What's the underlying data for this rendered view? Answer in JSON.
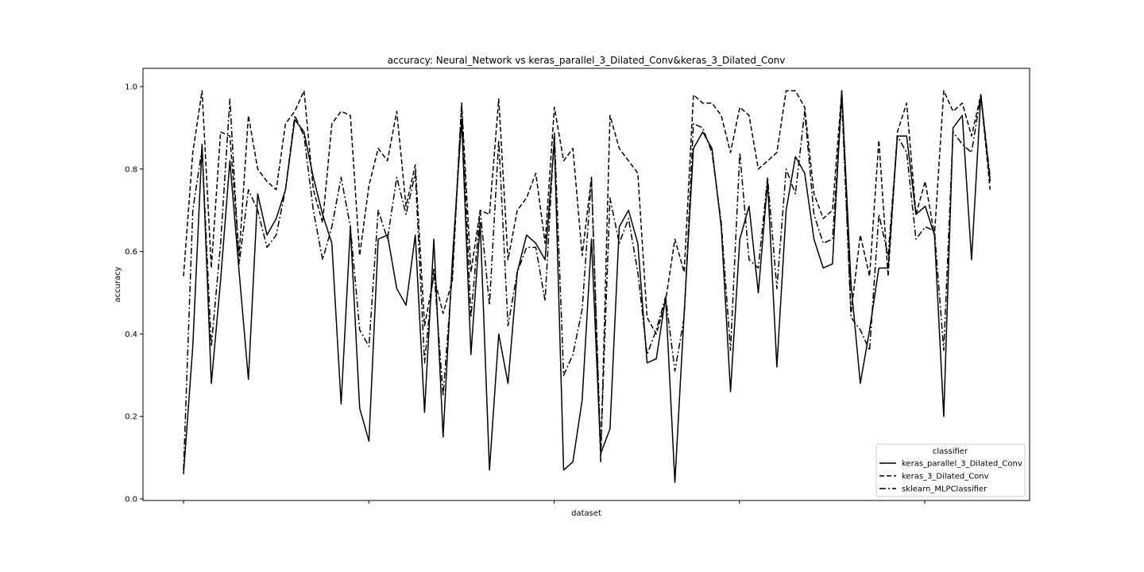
{
  "chart_data": {
    "type": "line",
    "title": "accuracy: Neural_Network vs keras_parallel_3_Dilated_Conv&keras_3_Dilated_Conv",
    "xlabel": "dataset",
    "ylabel": "accuracy",
    "ylim": [
      0.0,
      1.0
    ],
    "y_ticks": [
      "0.0",
      "0.2",
      "0.4",
      "0.6",
      "0.8",
      "1.0"
    ],
    "y_tick_values": [
      0.0,
      0.2,
      0.4,
      0.6,
      0.8,
      1.0
    ],
    "x_tick_count": 5,
    "grid": false,
    "legend": {
      "title": "classifier",
      "placement": "lower-right"
    },
    "line_color": "#000000",
    "series": [
      {
        "name": "keras_parallel_3_Dilated_Conv",
        "style": "solid",
        "values": [
          0.06,
          0.37,
          0.86,
          0.28,
          0.53,
          0.82,
          0.55,
          0.29,
          0.74,
          0.64,
          0.68,
          0.75,
          0.92,
          0.89,
          0.78,
          0.69,
          0.62,
          0.23,
          0.66,
          0.22,
          0.14,
          0.63,
          0.64,
          0.51,
          0.47,
          0.64,
          0.21,
          0.63,
          0.15,
          0.58,
          0.92,
          0.35,
          0.67,
          0.07,
          0.4,
          0.28,
          0.55,
          0.64,
          0.62,
          0.58,
          0.87,
          0.07,
          0.09,
          0.24,
          0.63,
          0.11,
          0.17,
          0.66,
          0.7,
          0.62,
          0.33,
          0.34,
          0.49,
          0.04,
          0.45,
          0.85,
          0.89,
          0.85,
          0.66,
          0.26,
          0.63,
          0.71,
          0.5,
          0.77,
          0.32,
          0.7,
          0.83,
          0.79,
          0.63,
          0.56,
          0.57,
          0.99,
          0.52,
          0.28,
          0.41,
          0.56,
          0.56,
          0.88,
          0.88,
          0.69,
          0.71,
          0.64,
          0.2,
          0.9,
          0.93,
          0.58,
          0.98,
          0.77
        ]
      },
      {
        "name": "keras_3_Dilated_Conv",
        "style": "dashed",
        "values": [
          0.54,
          0.84,
          0.99,
          0.56,
          0.89,
          0.88,
          0.59,
          0.93,
          0.8,
          0.77,
          0.75,
          0.91,
          0.94,
          0.99,
          0.75,
          0.67,
          0.91,
          0.94,
          0.93,
          0.59,
          0.76,
          0.85,
          0.82,
          0.94,
          0.71,
          0.81,
          0.42,
          0.54,
          0.45,
          0.53,
          0.96,
          0.55,
          0.7,
          0.69,
          0.97,
          0.58,
          0.7,
          0.73,
          0.79,
          0.62,
          0.95,
          0.82,
          0.85,
          0.59,
          0.78,
          0.09,
          0.93,
          0.85,
          0.82,
          0.79,
          0.44,
          0.4,
          0.48,
          0.63,
          0.55,
          0.98,
          0.96,
          0.96,
          0.93,
          0.84,
          0.95,
          0.93,
          0.8,
          0.82,
          0.84,
          0.99,
          0.99,
          0.95,
          0.74,
          0.68,
          0.7,
          0.99,
          0.45,
          0.64,
          0.54,
          0.87,
          0.54,
          0.89,
          0.96,
          0.69,
          0.77,
          0.64,
          0.99,
          0.94,
          0.96,
          0.88,
          0.98,
          0.75
        ]
      },
      {
        "name": "sklearn_MLPClassifier",
        "style": "dashdot",
        "values": [
          0.07,
          0.7,
          0.85,
          0.37,
          0.62,
          0.97,
          0.57,
          0.75,
          0.7,
          0.61,
          0.64,
          0.75,
          0.93,
          0.88,
          0.7,
          0.58,
          0.66,
          0.78,
          0.66,
          0.41,
          0.37,
          0.7,
          0.63,
          0.78,
          0.69,
          0.79,
          0.33,
          0.56,
          0.25,
          0.55,
          0.96,
          0.44,
          0.7,
          0.47,
          0.87,
          0.42,
          0.55,
          0.61,
          0.61,
          0.48,
          0.89,
          0.3,
          0.35,
          0.46,
          0.78,
          0.12,
          0.73,
          0.62,
          0.68,
          0.55,
          0.35,
          0.41,
          0.49,
          0.31,
          0.44,
          0.91,
          0.9,
          0.84,
          0.67,
          0.36,
          0.84,
          0.58,
          0.56,
          0.78,
          0.51,
          0.8,
          0.74,
          0.94,
          0.69,
          0.62,
          0.63,
          0.97,
          0.44,
          0.41,
          0.36,
          0.69,
          0.59,
          0.88,
          0.84,
          0.63,
          0.66,
          0.65,
          0.36,
          0.89,
          0.86,
          0.84,
          0.98,
          0.78
        ]
      }
    ]
  }
}
